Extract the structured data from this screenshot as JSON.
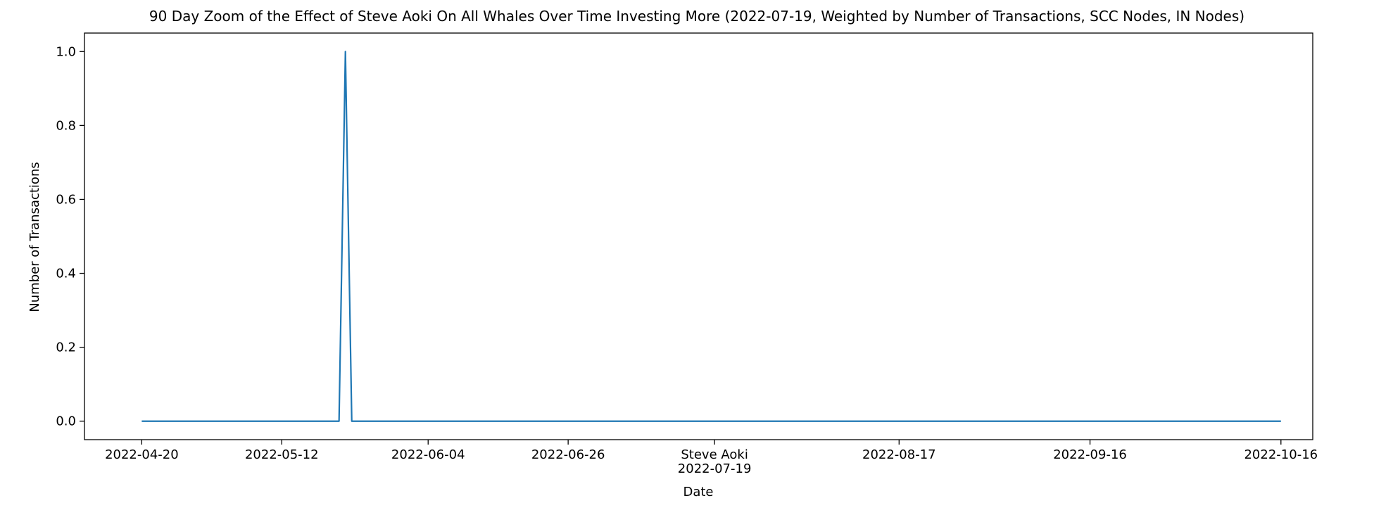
{
  "chart_data": {
    "type": "line",
    "title": "90 Day Zoom of the Effect of Steve Aoki On All Whales Over Time Investing More (2022-07-19, Weighted by Number of Transactions, SCC Nodes, IN Nodes)",
    "xlabel": "Date",
    "ylabel": "Number of Transactions",
    "xlim": [
      "2022-04-11",
      "2022-10-21"
    ],
    "ylim": [
      -0.05,
      1.05
    ],
    "grid": false,
    "x_ticks": [
      "2022-04-20",
      "2022-05-12",
      "2022-06-04",
      "2022-06-26",
      "2022-07-19",
      "2022-08-17",
      "2022-09-16",
      "2022-10-16"
    ],
    "y_ticks": [
      0.0,
      0.2,
      0.4,
      0.6,
      0.8,
      1.0
    ],
    "y_tick_labels": [
      "0.0",
      "0.2",
      "0.4",
      "0.6",
      "0.8",
      "1.0"
    ],
    "event": {
      "label": "Steve Aoki",
      "date": "2022-07-19"
    },
    "series": [
      {
        "color": "#1f77b4",
        "x": [
          "2022-04-20",
          "2022-05-21",
          "2022-05-22",
          "2022-05-23",
          "2022-10-16"
        ],
        "y": [
          0,
          0,
          1,
          0,
          0
        ]
      }
    ]
  }
}
